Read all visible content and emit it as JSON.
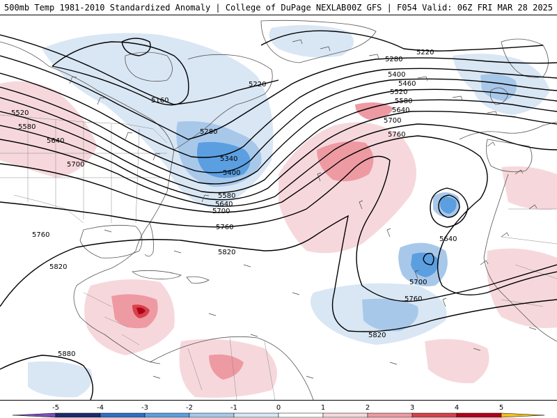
{
  "header": {
    "left": "500mb Temp 1981-2010 Standardized Anomaly | College of DuPage NEXLAB",
    "right": "00Z GFS | F054 Valid: 06Z FRI MAR 28 2025"
  },
  "colors": {
    "contour": "#000000",
    "coast": "#555555",
    "neg_light": "#d9e6f4",
    "neg_mid": "#a8c8ea",
    "neg_strong": "#5b9fe0",
    "neg_deep": "#2f6fc2",
    "pos_light": "#f6d8dc",
    "pos_mid": "#ee9aa3",
    "pos_strong": "#d7414a",
    "pos_deep": "#b0001a"
  },
  "contours": [
    {
      "label": "5160"
    },
    {
      "label": "5220"
    },
    {
      "label": "5220"
    },
    {
      "label": "5280"
    },
    {
      "label": "5280"
    },
    {
      "label": "5340"
    },
    {
      "label": "5400"
    },
    {
      "label": "5400"
    },
    {
      "label": "5460"
    },
    {
      "label": "5520"
    },
    {
      "label": "5520"
    },
    {
      "label": "5580"
    },
    {
      "label": "5580"
    },
    {
      "label": "5580"
    },
    {
      "label": "5640"
    },
    {
      "label": "5640"
    },
    {
      "label": "5640"
    },
    {
      "label": "5640"
    },
    {
      "label": "5700"
    },
    {
      "label": "5700"
    },
    {
      "label": "5700"
    },
    {
      "label": "5700"
    },
    {
      "label": "5760"
    },
    {
      "label": "5760"
    },
    {
      "label": "5760"
    },
    {
      "label": "5760"
    },
    {
      "label": "5820"
    },
    {
      "label": "5820"
    },
    {
      "label": "5820"
    },
    {
      "label": "5880"
    }
  ],
  "colorbar": {
    "ticks": [
      "-5",
      "-4",
      "-3",
      "-2",
      "-1",
      "0",
      "1",
      "2",
      "3",
      "4",
      "5"
    ],
    "colors": [
      "#1e2a6e",
      "#2f6fc2",
      "#5b9fe0",
      "#a8c8ea",
      "#d9e6f4",
      "#ffffff",
      "#f6d8dc",
      "#ee9aa3",
      "#d7414a",
      "#b0001a"
    ],
    "under_color": "#7a4fb8",
    "over_color": "#f0c020"
  }
}
